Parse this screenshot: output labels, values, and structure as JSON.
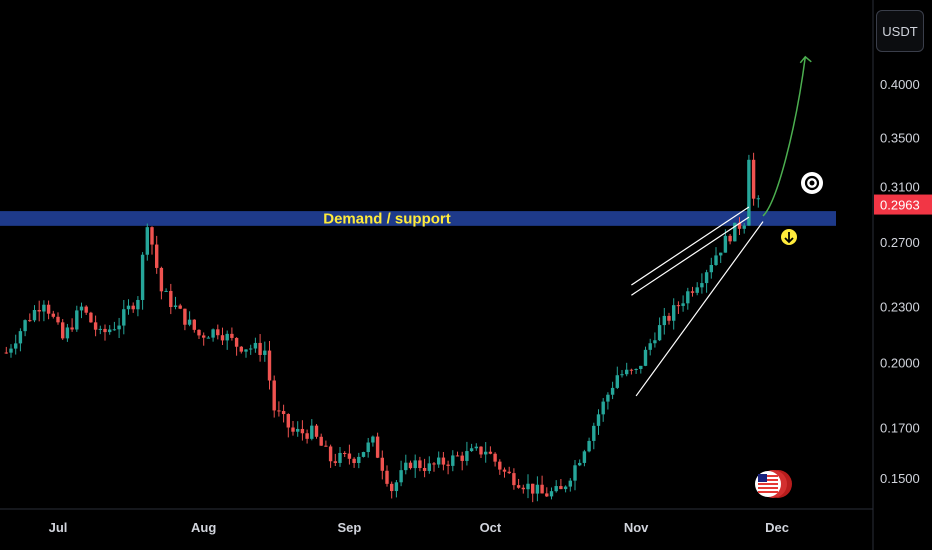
{
  "currency_label": "USDT",
  "chart_data": {
    "type": "candlestick",
    "title": "",
    "xlabel": "",
    "ylabel": "",
    "y_scale": "log",
    "ylim": [
      0.135,
      0.46
    ],
    "y_ticks": [
      "0.4000",
      "0.3500",
      "0.3100",
      "0.2700",
      "0.2300",
      "0.2000",
      "0.1700",
      "0.1500"
    ],
    "x_ticks": [
      "Jul",
      "Aug",
      "Sep",
      "Oct",
      "Nov",
      "Dec"
    ],
    "last_price": "0.2963",
    "grid": false,
    "colors": {
      "up": "#26a69a",
      "down": "#ef5350",
      "zone": "#1e3a8a",
      "zone_label": "#ffeb3b",
      "projection": "#4caf50",
      "price_tag": "#f23645"
    },
    "demand_zone": {
      "label": "Demand / support",
      "low": 0.281,
      "high": 0.2915
    },
    "close_path": [
      [
        "2024-06-20",
        0.205
      ],
      [
        "2024-06-24",
        0.221
      ],
      [
        "2024-06-28",
        0.234
      ],
      [
        "2024-07-02",
        0.212
      ],
      [
        "2024-07-06",
        0.229
      ],
      [
        "2024-07-10",
        0.214
      ],
      [
        "2024-07-14",
        0.221
      ],
      [
        "2024-07-18",
        0.236
      ],
      [
        "2024-07-20",
        0.285
      ],
      [
        "2024-07-23",
        0.239
      ],
      [
        "2024-07-27",
        0.226
      ],
      [
        "2024-07-31",
        0.214
      ],
      [
        "2024-08-04",
        0.217
      ],
      [
        "2024-08-08",
        0.209
      ],
      [
        "2024-08-12",
        0.207
      ],
      [
        "2024-08-14",
        0.206
      ],
      [
        "2024-08-16",
        0.178
      ],
      [
        "2024-08-20",
        0.168
      ],
      [
        "2024-08-24",
        0.168
      ],
      [
        "2024-08-28",
        0.157
      ],
      [
        "2024-09-02",
        0.158
      ],
      [
        "2024-09-06",
        0.164
      ],
      [
        "2024-09-10",
        0.146
      ],
      [
        "2024-09-14",
        0.156
      ],
      [
        "2024-09-18",
        0.154
      ],
      [
        "2024-09-24",
        0.158
      ],
      [
        "2024-09-30",
        0.161
      ],
      [
        "2024-10-04",
        0.152
      ],
      [
        "2024-10-08",
        0.148
      ],
      [
        "2024-10-12",
        0.144
      ],
      [
        "2024-10-16",
        0.145
      ],
      [
        "2024-10-20",
        0.158
      ],
      [
        "2024-10-24",
        0.176
      ],
      [
        "2024-10-28",
        0.194
      ],
      [
        "2024-11-01",
        0.195
      ],
      [
        "2024-11-05",
        0.215
      ],
      [
        "2024-11-08",
        0.224
      ],
      [
        "2024-11-12",
        0.238
      ],
      [
        "2024-11-15",
        0.248
      ],
      [
        "2024-11-18",
        0.262
      ],
      [
        "2024-11-21",
        0.275
      ],
      [
        "2024-11-24",
        0.285
      ],
      [
        "2024-11-25",
        0.336
      ],
      [
        "2024-11-26",
        0.3
      ],
      [
        "2024-11-27",
        0.2963
      ]
    ],
    "projection": {
      "type": "line",
      "points": [
        [
          "2024-11-28",
          0.288
        ],
        [
          "2024-12-01",
          0.298
        ],
        [
          "2024-12-05",
          0.358
        ],
        [
          "2024-12-07",
          0.428
        ]
      ]
    },
    "wedge": {
      "upper": [
        [
          "2024-10-31",
          0.2425
        ],
        [
          "2024-11-25",
          0.2945
        ]
      ],
      "lower": [
        [
          "2024-11-01",
          0.184
        ],
        [
          "2024-11-28",
          0.284
        ]
      ]
    },
    "dates_range": [
      "2024-06-20",
      "2024-12-18"
    ]
  }
}
